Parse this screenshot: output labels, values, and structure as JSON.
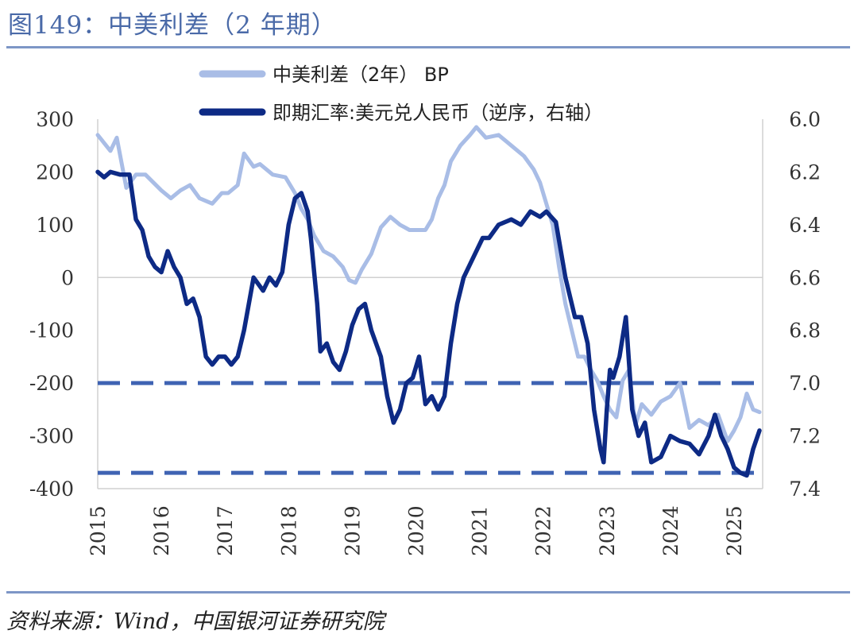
{
  "figure": {
    "title": "图149：中美利差（2 年期）",
    "source": "资料来源：Wind，中国银河证券研究院"
  },
  "colors": {
    "spread": "#a9bde6",
    "fx": "#0d2a85",
    "ref": "#3f63b3",
    "axis": "#d0d0d0",
    "rule": "#7d96c6",
    "title": "#4a6aa8"
  },
  "chart_data": {
    "type": "line",
    "title": "图149：中美利差（2 年期）",
    "x_ticks": [
      "2015",
      "2016",
      "2017",
      "2018",
      "2019",
      "2020",
      "2021",
      "2022",
      "2023",
      "2024",
      "2025"
    ],
    "y_left": {
      "ylim": [
        -400,
        300
      ],
      "ticks": [
        "300",
        "200",
        "100",
        "0",
        "-100",
        "-200",
        "-300",
        "-400"
      ]
    },
    "y_right": {
      "ylim": [
        7.4,
        6.0
      ],
      "inverted": true,
      "ticks": [
        "6.0",
        "6.2",
        "6.4",
        "6.6",
        "6.8",
        "7.0",
        "7.2",
        "7.4"
      ]
    },
    "legend": [
      "中美利差（2年） BP",
      "即期汇率:美元兑人民币（逆序，右轴）"
    ],
    "reference_lines": [
      {
        "axis": "left",
        "value": -200,
        "style": "dashed"
      },
      {
        "axis": "left",
        "value": -370,
        "style": "dashed"
      }
    ],
    "series": [
      {
        "name": "中美利差（2年） BP",
        "axis": "left",
        "x": [
          2015.0,
          2015.1,
          2015.2,
          2015.3,
          2015.45,
          2015.6,
          2015.75,
          2016.0,
          2016.15,
          2016.3,
          2016.45,
          2016.6,
          2016.8,
          2016.95,
          2017.05,
          2017.2,
          2017.3,
          2017.45,
          2017.55,
          2017.75,
          2017.95,
          2018.1,
          2018.2,
          2018.3,
          2018.4,
          2018.55,
          2018.7,
          2018.85,
          2018.95,
          2019.05,
          2019.15,
          2019.3,
          2019.45,
          2019.6,
          2019.75,
          2019.9,
          2020.05,
          2020.15,
          2020.25,
          2020.35,
          2020.45,
          2020.55,
          2020.7,
          2020.85,
          2020.95,
          2021.1,
          2021.3,
          2021.5,
          2021.7,
          2021.85,
          2021.95,
          2022.05,
          2022.15,
          2022.25,
          2022.35,
          2022.45,
          2022.55,
          2022.65,
          2022.75,
          2022.85,
          2022.95,
          2023.05,
          2023.15,
          2023.25,
          2023.35,
          2023.45,
          2023.55,
          2023.7,
          2023.85,
          2024.0,
          2024.15,
          2024.3,
          2024.45,
          2024.6,
          2024.75,
          2024.9,
          2025.0,
          2025.1,
          2025.2,
          2025.3,
          2025.4
        ],
        "values": [
          270,
          255,
          240,
          265,
          170,
          195,
          195,
          165,
          150,
          165,
          175,
          150,
          140,
          160,
          160,
          175,
          235,
          210,
          215,
          195,
          190,
          160,
          130,
          110,
          80,
          50,
          40,
          20,
          -5,
          -10,
          15,
          45,
          95,
          115,
          100,
          90,
          90,
          90,
          110,
          150,
          175,
          220,
          250,
          270,
          285,
          265,
          270,
          250,
          230,
          205,
          180,
          140,
          100,
          20,
          -50,
          -100,
          -150,
          -150,
          -175,
          -195,
          -225,
          -250,
          -265,
          -195,
          -175,
          -280,
          -240,
          -260,
          -235,
          -225,
          -200,
          -285,
          -270,
          -280,
          -260,
          -310,
          -290,
          -265,
          -220,
          -250,
          -255
        ]
      },
      {
        "name": "即期汇率:美元兑人民币（逆序，右轴）",
        "axis": "right",
        "x": [
          2015.0,
          2015.1,
          2015.2,
          2015.35,
          2015.5,
          2015.6,
          2015.7,
          2015.8,
          2015.9,
          2016.0,
          2016.1,
          2016.2,
          2016.3,
          2016.4,
          2016.5,
          2016.6,
          2016.7,
          2016.8,
          2016.9,
          2017.0,
          2017.1,
          2017.2,
          2017.3,
          2017.45,
          2017.6,
          2017.7,
          2017.8,
          2017.9,
          2018.0,
          2018.1,
          2018.2,
          2018.3,
          2018.35,
          2018.45,
          2018.5,
          2018.6,
          2018.7,
          2018.8,
          2018.9,
          2019.0,
          2019.1,
          2019.2,
          2019.3,
          2019.45,
          2019.55,
          2019.65,
          2019.75,
          2019.85,
          2019.95,
          2020.05,
          2020.15,
          2020.25,
          2020.35,
          2020.45,
          2020.55,
          2020.65,
          2020.75,
          2020.85,
          2020.95,
          2021.05,
          2021.15,
          2021.3,
          2021.5,
          2021.65,
          2021.8,
          2021.95,
          2022.05,
          2022.2,
          2022.35,
          2022.5,
          2022.6,
          2022.7,
          2022.8,
          2022.9,
          2022.95,
          2023.0,
          2023.05,
          2023.1,
          2023.2,
          2023.3,
          2023.4,
          2023.5,
          2023.6,
          2023.7,
          2023.85,
          2024.0,
          2024.15,
          2024.3,
          2024.45,
          2024.6,
          2024.7,
          2024.8,
          2024.9,
          2025.0,
          2025.1,
          2025.2,
          2025.3,
          2025.4
        ],
        "values": [
          6.2,
          6.22,
          6.2,
          6.21,
          6.21,
          6.38,
          6.42,
          6.52,
          6.56,
          6.58,
          6.5,
          6.56,
          6.6,
          6.7,
          6.68,
          6.75,
          6.9,
          6.93,
          6.9,
          6.9,
          6.93,
          6.9,
          6.8,
          6.6,
          6.65,
          6.6,
          6.63,
          6.58,
          6.4,
          6.3,
          6.28,
          6.35,
          6.45,
          6.7,
          6.88,
          6.85,
          6.92,
          6.95,
          6.88,
          6.78,
          6.72,
          6.7,
          6.8,
          6.9,
          7.05,
          7.15,
          7.1,
          7.0,
          6.98,
          6.9,
          7.08,
          7.05,
          7.1,
          7.05,
          6.85,
          6.7,
          6.6,
          6.55,
          6.5,
          6.45,
          6.45,
          6.4,
          6.38,
          6.4,
          6.35,
          6.37,
          6.35,
          6.39,
          6.6,
          6.75,
          6.75,
          6.85,
          7.1,
          7.25,
          7.3,
          7.1,
          6.95,
          6.98,
          6.9,
          6.75,
          7.1,
          7.2,
          7.15,
          7.3,
          7.28,
          7.2,
          7.22,
          7.23,
          7.27,
          7.2,
          7.12,
          7.2,
          7.25,
          7.32,
          7.34,
          7.35,
          7.25,
          7.18
        ]
      }
    ]
  }
}
